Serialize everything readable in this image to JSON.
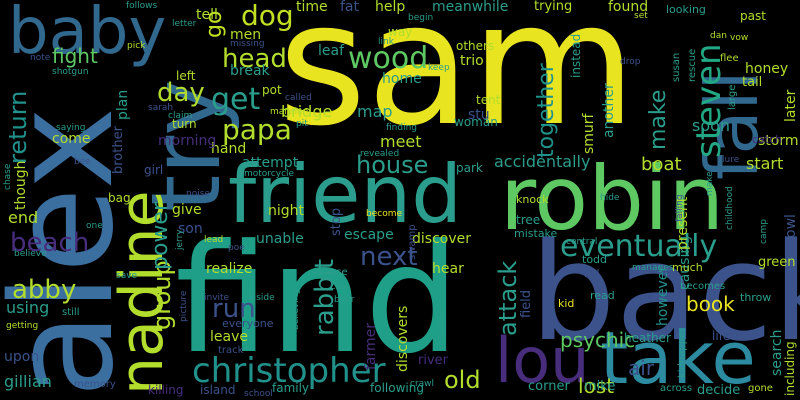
{
  "colors": {
    "background": "#000000",
    "yellow": "#e9e420",
    "lime": "#b2dd2c",
    "green": "#5ec962",
    "teal": "#21918c",
    "cyan": "#2a9d8c",
    "blue": "#3b528b",
    "indigo": "#472d7b",
    "purple": "#440154"
  },
  "words": [
    {
      "text": "sam",
      "color": "#e9e420"
    },
    {
      "text": "alex",
      "color": "#3b6fa0"
    },
    {
      "text": "find",
      "color": "#1f9f88"
    },
    {
      "text": "back",
      "color": "#3b528b"
    },
    {
      "text": "robin",
      "color": "#5ec962"
    },
    {
      "text": "friend",
      "color": "#2a9d8c"
    },
    {
      "text": "take",
      "color": "#2c8ba0"
    },
    {
      "text": "try",
      "color": "#31688e"
    },
    {
      "text": "baby",
      "color": "#31688e"
    },
    {
      "text": "fall",
      "color": "#31688e"
    },
    {
      "text": "nadine",
      "color": "#b2dd2c"
    },
    {
      "text": "lou",
      "color": "#472d7b"
    },
    {
      "text": "christopher",
      "color": "#21918c"
    },
    {
      "text": "eventually",
      "color": "#2a9d8c"
    },
    {
      "text": "steven",
      "color": "#22a884"
    },
    {
      "text": "dog",
      "color": "#c2df23"
    },
    {
      "text": "wood",
      "color": "#5ec962"
    },
    {
      "text": "head",
      "color": "#b2dd2c"
    },
    {
      "text": "get",
      "color": "#2a9d8c"
    },
    {
      "text": "papa",
      "color": "#b2dd2c"
    },
    {
      "text": "day",
      "color": "#b2dd2c"
    },
    {
      "text": "return",
      "color": "#21918c"
    },
    {
      "text": "beach",
      "color": "#472d7b"
    },
    {
      "text": "abby",
      "color": "#b2dd2c"
    },
    {
      "text": "fight",
      "color": "#5ec962"
    },
    {
      "text": "house",
      "color": "#2a9d8c"
    },
    {
      "text": "next",
      "color": "#3b528b"
    },
    {
      "text": "group",
      "color": "#b2dd2c"
    },
    {
      "text": "power",
      "color": "#2a9d8c"
    },
    {
      "text": "rabbit",
      "color": "#2a9d8c"
    },
    {
      "text": "run",
      "color": "#3b528b"
    },
    {
      "text": "old",
      "color": "#b2dd2c"
    },
    {
      "text": "attack",
      "color": "#2a9d8c"
    },
    {
      "text": "together",
      "color": "#21918c"
    },
    {
      "text": "make",
      "color": "#2a9d8c"
    },
    {
      "text": "book",
      "color": "#e9e420"
    },
    {
      "text": "psychic",
      "color": "#5ec962"
    },
    {
      "text": "lost",
      "color": "#b2dd2c"
    },
    {
      "text": "accidentally",
      "color": "#2a9d8c"
    },
    {
      "text": "boat",
      "color": "#b2dd2c"
    },
    {
      "text": "start",
      "color": "#b2dd2c"
    },
    {
      "text": "soon",
      "color": "#2a9d8c"
    },
    {
      "text": "go",
      "color": "#c2df23"
    },
    {
      "text": "tell",
      "color": "#b2dd2c"
    },
    {
      "text": "time",
      "color": "#b2dd2c"
    },
    {
      "text": "fat",
      "color": "#3b528b"
    },
    {
      "text": "help",
      "color": "#b2dd2c"
    },
    {
      "text": "meanwhile",
      "color": "#2a9d8c"
    },
    {
      "text": "found",
      "color": "#b2dd2c"
    },
    {
      "text": "way",
      "color": "#b2dd2c"
    },
    {
      "text": "trio",
      "color": "#b2dd2c"
    },
    {
      "text": "home",
      "color": "#2a9d8c"
    },
    {
      "text": "map",
      "color": "#2a9d8c"
    },
    {
      "text": "meet",
      "color": "#b2dd2c"
    },
    {
      "text": "bridge",
      "color": "#b2dd2c"
    },
    {
      "text": "leaf",
      "color": "#2a9d8c"
    },
    {
      "text": "stu",
      "color": "#3b528b"
    },
    {
      "text": "men",
      "color": "#b2dd2c"
    },
    {
      "text": "break",
      "color": "#2a9d8c"
    },
    {
      "text": "hand",
      "color": "#b2dd2c"
    },
    {
      "text": "morning",
      "color": "#472d7b"
    },
    {
      "text": "come",
      "color": "#b2dd2c"
    },
    {
      "text": "brother",
      "color": "#3b528b"
    },
    {
      "text": "attempt",
      "color": "#2a9d8c"
    },
    {
      "text": "night",
      "color": "#b2dd2c"
    },
    {
      "text": "give",
      "color": "#b2dd2c"
    },
    {
      "text": "son",
      "color": "#3b528b"
    },
    {
      "text": "unable",
      "color": "#2a9d8c"
    },
    {
      "text": "escape",
      "color": "#2a9d8c"
    },
    {
      "text": "discover",
      "color": "#b2dd2c"
    },
    {
      "text": "hear",
      "color": "#b2dd2c"
    },
    {
      "text": "stop",
      "color": "#3b528b"
    },
    {
      "text": "realize",
      "color": "#b2dd2c"
    },
    {
      "text": "leave",
      "color": "#b2dd2c"
    },
    {
      "text": "farmer",
      "color": "#472d7b"
    },
    {
      "text": "discovers",
      "color": "#b2dd2c"
    },
    {
      "text": "honey",
      "color": "#b2dd2c"
    },
    {
      "text": "another",
      "color": "#2a9d8c"
    },
    {
      "text": "smurf",
      "color": "#b2dd2c"
    },
    {
      "text": "causing",
      "color": "#2a9d8c"
    },
    {
      "text": "however",
      "color": "#21918c"
    },
    {
      "text": "present",
      "color": "#b2dd2c"
    },
    {
      "text": "heather",
      "color": "#2a9d8c"
    },
    {
      "text": "search",
      "color": "#2a9d8c"
    },
    {
      "text": "owl",
      "color": "#3b528b"
    },
    {
      "text": "later",
      "color": "#b2dd2c"
    },
    {
      "text": "storm",
      "color": "#b2dd2c"
    },
    {
      "text": "green",
      "color": "#b2dd2c"
    },
    {
      "text": "including",
      "color": "#b2dd2c"
    },
    {
      "text": "decide",
      "color": "#2a9d8c"
    },
    {
      "text": "air",
      "color": "#3b528b"
    },
    {
      "text": "corner",
      "color": "#2a9d8c"
    },
    {
      "text": "mike",
      "color": "#2a9d8c"
    },
    {
      "text": "gillian",
      "color": "#2a9d8c"
    },
    {
      "text": "upon",
      "color": "#3b528b"
    },
    {
      "text": "using",
      "color": "#2a9d8c"
    },
    {
      "text": "end",
      "color": "#b2dd2c"
    },
    {
      "text": "though",
      "color": "#b2dd2c"
    },
    {
      "text": "plan",
      "color": "#2a9d8c"
    },
    {
      "text": "river",
      "color": "#472d7b"
    },
    {
      "text": "island",
      "color": "#3b528b"
    },
    {
      "text": "family",
      "color": "#2a9d8c"
    },
    {
      "text": "following",
      "color": "#2a9d8c"
    },
    {
      "text": "memory",
      "color": "#3b528b"
    },
    {
      "text": "killing",
      "color": "#472d7b"
    },
    {
      "text": "pot",
      "color": "#b2dd2c"
    },
    {
      "text": "left",
      "color": "#b2dd2c"
    },
    {
      "text": "turn",
      "color": "#b2dd2c"
    },
    {
      "text": "others",
      "color": "#b2dd2c"
    },
    {
      "text": "tent",
      "color": "#b2dd2c"
    },
    {
      "text": "woman",
      "color": "#2a9d8c"
    },
    {
      "text": "park",
      "color": "#2a9d8c"
    },
    {
      "text": "knock",
      "color": "#b2dd2c"
    },
    {
      "text": "tree",
      "color": "#2a9d8c"
    },
    {
      "text": "mistake",
      "color": "#2a9d8c"
    },
    {
      "text": "field",
      "color": "#3b528b"
    },
    {
      "text": "kid",
      "color": "#e9e420"
    },
    {
      "text": "read",
      "color": "#2a9d8c"
    },
    {
      "text": "kill",
      "color": "#3b528b"
    },
    {
      "text": "todd",
      "color": "#2a9d8c"
    },
    {
      "text": "much",
      "color": "#b2dd2c"
    },
    {
      "text": "becomes",
      "color": "#2a9d8c"
    },
    {
      "text": "throw",
      "color": "#2a9d8c"
    },
    {
      "text": "gone",
      "color": "#b2dd2c"
    },
    {
      "text": "across",
      "color": "#2a9d8c"
    },
    {
      "text": "kidnapper",
      "color": "#2a9d8c"
    },
    {
      "text": "life",
      "color": "#3b528b"
    },
    {
      "text": "tail",
      "color": "#b2dd2c"
    },
    {
      "text": "catch",
      "color": "#472d7b"
    },
    {
      "text": "large",
      "color": "#2a9d8c"
    },
    {
      "text": "instead",
      "color": "#2a9d8c"
    },
    {
      "text": "looking",
      "color": "#2a9d8c"
    },
    {
      "text": "trying",
      "color": "#b2dd2c"
    },
    {
      "text": "past",
      "color": "#b2dd2c"
    },
    {
      "text": "rescue",
      "color": "#2a9d8c"
    },
    {
      "text": "susan",
      "color": "#2a9d8c"
    },
    {
      "text": "flee",
      "color": "#b2dd2c"
    },
    {
      "text": "vow",
      "color": "#b2dd2c"
    },
    {
      "text": "dan",
      "color": "#b2dd2c"
    },
    {
      "text": "set",
      "color": "#b2dd2c"
    },
    {
      "text": "begin",
      "color": "#2a9d8c"
    },
    {
      "text": "link",
      "color": "#2a9d8c"
    },
    {
      "text": "keep",
      "color": "#2a9d8c"
    },
    {
      "text": "drop",
      "color": "#3b528b"
    },
    {
      "text": "finding",
      "color": "#2a9d8c"
    },
    {
      "text": "revealed",
      "color": "#2a9d8c"
    },
    {
      "text": "called",
      "color": "#3b528b"
    },
    {
      "text": "pit",
      "color": "#2a9d8c"
    },
    {
      "text": "mansion",
      "color": "#b2dd2c"
    },
    {
      "text": "letter",
      "color": "#2a9d8c"
    },
    {
      "text": "missing",
      "color": "#3b528b"
    },
    {
      "text": "follows",
      "color": "#2a9d8c"
    },
    {
      "text": "pick",
      "color": "#b2dd2c"
    },
    {
      "text": "note",
      "color": "#3b528b"
    },
    {
      "text": "shotgun",
      "color": "#2a9d8c"
    },
    {
      "text": "sarah",
      "color": "#3b528b"
    },
    {
      "text": "claim",
      "color": "#2a9d8c"
    },
    {
      "text": "saying",
      "color": "#2a9d8c"
    },
    {
      "text": "bee",
      "color": "#3b528b"
    },
    {
      "text": "girl",
      "color": "#3b528b"
    },
    {
      "text": "chase",
      "color": "#2a9d8c"
    },
    {
      "text": "bag",
      "color": "#b2dd2c"
    },
    {
      "text": "noise",
      "color": "#3b528b"
    },
    {
      "text": "motorcycle",
      "color": "#2a9d8c"
    },
    {
      "text": "one",
      "color": "#2a9d8c"
    },
    {
      "text": "believe",
      "color": "#2a9d8c"
    },
    {
      "text": "lead",
      "color": "#b2dd2c"
    },
    {
      "text": "poe",
      "color": "#3b528b"
    },
    {
      "text": "jerry",
      "color": "#2a9d8c"
    },
    {
      "text": "save",
      "color": "#2a9d8c"
    },
    {
      "text": "getting",
      "color": "#b2dd2c"
    },
    {
      "text": "still",
      "color": "#2a9d8c"
    },
    {
      "text": "invite",
      "color": "#3b528b"
    },
    {
      "text": "inside",
      "color": "#2a9d8c"
    },
    {
      "text": "picture",
      "color": "#3b528b"
    },
    {
      "text": "everyone",
      "color": "#3b528b"
    },
    {
      "text": "believing",
      "color": "#2a9d8c"
    },
    {
      "text": "track",
      "color": "#3b528b"
    },
    {
      "text": "use",
      "color": "#2a9d8c"
    },
    {
      "text": "call",
      "color": "#2a9d8c"
    },
    {
      "text": "bear",
      "color": "#2a9d8c"
    },
    {
      "text": "swamp",
      "color": "#3b528b"
    },
    {
      "text": "become",
      "color": "#e9e420"
    },
    {
      "text": "central",
      "color": "#2a9d8c"
    },
    {
      "text": "hide",
      "color": "#2a9d8c"
    },
    {
      "text": "childhood",
      "color": "#2a9d8c"
    },
    {
      "text": "falling",
      "color": "#3b528b"
    },
    {
      "text": "camp",
      "color": "#2a9d8c"
    },
    {
      "text": "manages",
      "color": "#2a9d8c"
    },
    {
      "text": "make",
      "color": "#2a9d8c"
    },
    {
      "text": "reggie",
      "color": "#2a9d8c"
    },
    {
      "text": "crawl",
      "color": "#2a9d8c"
    },
    {
      "text": "school",
      "color": "#3b528b"
    },
    {
      "text": "lure",
      "color": "#3b528b"
    }
  ]
}
